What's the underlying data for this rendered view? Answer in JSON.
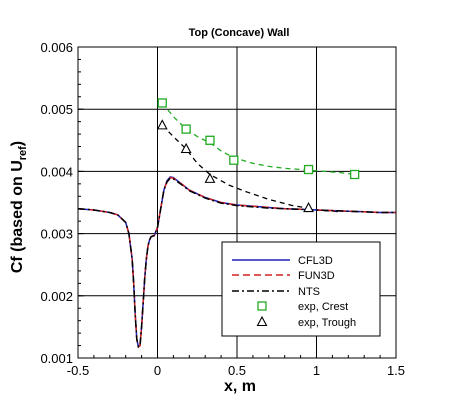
{
  "chart_data": {
    "type": "line",
    "title": "Top (Concave) Wall",
    "xlabel": "x, m",
    "ylabel": "Cf (based on U",
    "ylabel_sub": "ref",
    "ylabel_close": ")",
    "xlim": [
      -0.5,
      1.5
    ],
    "ylim": [
      0.001,
      0.006
    ],
    "xticks": [
      -0.5,
      0,
      0.5,
      1,
      1.5
    ],
    "xtick_labels": [
      "-0.5",
      "0",
      "0.5",
      "1",
      "1.5"
    ],
    "yticks": [
      0.001,
      0.002,
      0.003,
      0.004,
      0.005,
      0.006
    ],
    "ytick_labels": [
      "0.001",
      "0.002",
      "0.003",
      "0.004",
      "0.005",
      "0.006"
    ],
    "grid": true,
    "legend_position": "bottom-right",
    "series": [
      {
        "name": "CFL3D",
        "color": "#1f1fbf",
        "style": "solid",
        "x": [
          -0.5,
          -0.4,
          -0.3,
          -0.25,
          -0.2,
          -0.18,
          -0.16,
          -0.15,
          -0.14,
          -0.13,
          -0.12,
          -0.11,
          -0.1,
          -0.09,
          -0.08,
          -0.07,
          -0.06,
          -0.05,
          -0.04,
          -0.02,
          0.0,
          0.02,
          0.04,
          0.06,
          0.08,
          0.1,
          0.15,
          0.2,
          0.3,
          0.4,
          0.5,
          0.6,
          0.7,
          0.8,
          0.9,
          1.0,
          1.1,
          1.2,
          1.3,
          1.4,
          1.5
        ],
        "y": [
          0.0034,
          0.00338,
          0.00334,
          0.0033,
          0.00318,
          0.003,
          0.0026,
          0.0022,
          0.0017,
          0.0013,
          0.00118,
          0.0012,
          0.0015,
          0.0019,
          0.0023,
          0.0026,
          0.0028,
          0.0029,
          0.00295,
          0.00297,
          0.0031,
          0.0034,
          0.0037,
          0.00385,
          0.00391,
          0.0039,
          0.0038,
          0.0037,
          0.00358,
          0.0035,
          0.00346,
          0.00344,
          0.00342,
          0.0034,
          0.00339,
          0.00338,
          0.00337,
          0.00336,
          0.00335,
          0.00334,
          0.00334
        ]
      },
      {
        "name": "FUN3D",
        "color": "#d42020",
        "style": "dashed",
        "x": [
          -0.5,
          -0.4,
          -0.3,
          -0.25,
          -0.2,
          -0.18,
          -0.16,
          -0.15,
          -0.14,
          -0.13,
          -0.12,
          -0.11,
          -0.1,
          -0.09,
          -0.08,
          -0.07,
          -0.06,
          -0.05,
          -0.04,
          -0.02,
          0.0,
          0.02,
          0.04,
          0.06,
          0.08,
          0.1,
          0.15,
          0.2,
          0.3,
          0.4,
          0.5,
          0.6,
          0.7,
          0.8,
          0.9,
          1.0,
          1.1,
          1.2,
          1.3,
          1.4,
          1.5
        ],
        "y": [
          0.0034,
          0.00338,
          0.00334,
          0.0033,
          0.00318,
          0.003,
          0.0026,
          0.0022,
          0.0017,
          0.0013,
          0.00118,
          0.0012,
          0.0015,
          0.0019,
          0.0023,
          0.0026,
          0.0028,
          0.0029,
          0.00295,
          0.00297,
          0.0031,
          0.0034,
          0.0037,
          0.00384,
          0.0039,
          0.00389,
          0.0038,
          0.0037,
          0.00358,
          0.0035,
          0.00346,
          0.00344,
          0.00342,
          0.0034,
          0.00339,
          0.00338,
          0.00337,
          0.00336,
          0.00335,
          0.00334,
          0.00334
        ]
      },
      {
        "name": "NTS",
        "color": "#000000",
        "style": "dashdot",
        "x": [
          -0.5,
          -0.4,
          -0.3,
          -0.25,
          -0.2,
          -0.18,
          -0.16,
          -0.15,
          -0.14,
          -0.13,
          -0.12,
          -0.11,
          -0.1,
          -0.09,
          -0.08,
          -0.07,
          -0.06,
          -0.05,
          -0.04,
          -0.02,
          0.0,
          0.02,
          0.04,
          0.06,
          0.08,
          0.1,
          0.15,
          0.2,
          0.3,
          0.4,
          0.5,
          0.6,
          0.7,
          0.8,
          0.9,
          1.0,
          1.1,
          1.2,
          1.3,
          1.4,
          1.5
        ],
        "y": [
          0.0034,
          0.00338,
          0.00334,
          0.0033,
          0.00318,
          0.003,
          0.0026,
          0.0022,
          0.0017,
          0.0013,
          0.00118,
          0.0012,
          0.0015,
          0.0019,
          0.0023,
          0.0026,
          0.0028,
          0.0029,
          0.00295,
          0.00297,
          0.0031,
          0.0034,
          0.0037,
          0.00383,
          0.00389,
          0.00388,
          0.00379,
          0.00369,
          0.00357,
          0.00349,
          0.00345,
          0.00343,
          0.00341,
          0.0034,
          0.00339,
          0.00338,
          0.00337,
          0.00336,
          0.00335,
          0.00334,
          0.00334
        ]
      },
      {
        "name": "exp, Crest",
        "color": "#22aa22",
        "style": "square-markers",
        "x": [
          0.03,
          0.18,
          0.33,
          0.48,
          0.95,
          1.24
        ],
        "y": [
          0.0051,
          0.00468,
          0.0045,
          0.00418,
          0.00403,
          0.00395
        ],
        "fit_x": [
          0.03,
          0.1,
          0.18,
          0.25,
          0.33,
          0.4,
          0.48,
          0.6,
          0.7,
          0.8,
          0.9,
          0.95,
          1.05,
          1.15,
          1.24
        ],
        "fit_y": [
          0.0051,
          0.00488,
          0.00468,
          0.00456,
          0.00446,
          0.00433,
          0.00422,
          0.00413,
          0.00408,
          0.00405,
          0.00403,
          0.00402,
          0.004,
          0.00398,
          0.00395
        ]
      },
      {
        "name": "exp, Trough",
        "color": "#000000",
        "style": "triangle-markers",
        "x": [
          0.03,
          0.18,
          0.33,
          0.95
        ],
        "y": [
          0.00474,
          0.00436,
          0.00388,
          0.00341
        ],
        "fit_x": [
          0.03,
          0.1,
          0.18,
          0.25,
          0.33,
          0.45,
          0.55,
          0.7,
          0.85,
          0.95,
          1.0,
          1.15
        ],
        "fit_y": [
          0.00474,
          0.00456,
          0.00436,
          0.00413,
          0.00395,
          0.00378,
          0.00368,
          0.00355,
          0.00345,
          0.00341,
          0.00338,
          0.00335
        ]
      }
    ]
  }
}
